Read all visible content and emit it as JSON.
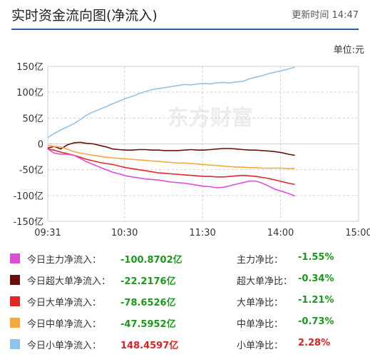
{
  "header": {
    "title": "实时资金流向图(净流入)",
    "update_time": "更新时间 14:47"
  },
  "unit_label": "单位:元",
  "watermark": "东方财富",
  "colors": {
    "main": "#e04cd8",
    "super_large": "#6b0e0e",
    "large": "#e32626",
    "medium": "#f4a93a",
    "small": "#8fc3ea",
    "grid": "#cfcfcf",
    "positive": "#e0201e",
    "negative": "#1a9a1a"
  },
  "chart_data": {
    "type": "line",
    "title": "",
    "xlabel": "",
    "ylabel": "",
    "xlim": [
      "09:31",
      "15:00"
    ],
    "ylim": [
      -150,
      150
    ],
    "x_ticks": [
      "09:31",
      "10:30",
      "11:30",
      "14:00",
      "15:00"
    ],
    "y_ticks": [
      "150亿",
      "100亿",
      "50亿",
      "0",
      "-50亿",
      "-100亿",
      "-150亿"
    ],
    "grid": true,
    "x_step_minutes": 5,
    "x_start": "09:31",
    "series": [
      {
        "key": "small",
        "values": [
          12,
          20,
          27,
          33,
          39,
          47,
          56,
          62,
          67,
          72,
          78,
          83,
          88,
          92,
          97,
          101,
          105,
          107,
          109,
          111,
          113,
          115,
          114,
          116,
          117,
          116,
          118,
          119,
          118,
          120,
          121,
          126,
          129,
          132,
          136,
          139,
          142,
          145,
          148.46
        ]
      },
      {
        "key": "super_large",
        "values": [
          -8,
          -5,
          -10,
          -2,
          2,
          3,
          1,
          0,
          -3,
          -6,
          -10,
          -11,
          -12,
          -12,
          -11,
          -11,
          -12,
          -12,
          -13,
          -13,
          -13,
          -12,
          -11,
          -12,
          -12,
          -11,
          -10,
          -9,
          -9,
          -10,
          -11,
          -12,
          -12,
          -13,
          -14,
          -15,
          -17,
          -20,
          -22.22
        ]
      },
      {
        "key": "medium",
        "values": [
          -3,
          -5,
          -6,
          -10,
          -15,
          -18,
          -20,
          -22,
          -24,
          -26,
          -27,
          -28,
          -29,
          -30,
          -31,
          -32,
          -33,
          -34,
          -35,
          -36,
          -37,
          -37,
          -38,
          -39,
          -40,
          -41,
          -42,
          -43,
          -44,
          -45,
          -45,
          -46,
          -46,
          -47,
          -47,
          -47,
          -47,
          -48,
          -47.6
        ]
      },
      {
        "key": "large",
        "values": [
          -10,
          -12,
          -16,
          -19,
          -22,
          -26,
          -30,
          -33,
          -36,
          -38,
          -40,
          -43,
          -46,
          -48,
          -50,
          -52,
          -54,
          -56,
          -57,
          -58,
          -59,
          -60,
          -61,
          -62,
          -63,
          -63,
          -64,
          -64,
          -63,
          -62,
          -61,
          -62,
          -63,
          -65,
          -67,
          -70,
          -73,
          -76,
          -78.65
        ]
      },
      {
        "key": "main",
        "values": [
          -10,
          -18,
          -20,
          -20,
          -22,
          -28,
          -35,
          -40,
          -45,
          -50,
          -55,
          -58,
          -62,
          -64,
          -66,
          -68,
          -69,
          -70,
          -72,
          -74,
          -75,
          -76,
          -78,
          -80,
          -82,
          -83,
          -85,
          -84,
          -81,
          -78,
          -75,
          -72,
          -72,
          -76,
          -82,
          -88,
          -92,
          -96,
          -100.87
        ]
      }
    ]
  },
  "legend": [
    {
      "key": "main",
      "name": "今日主力净流入：",
      "value": "-100.8702亿",
      "value_sign": "neg",
      "ratio_label": "主力净比：",
      "ratio": "-1.55%",
      "ratio_sign": "neg"
    },
    {
      "key": "super_large",
      "name": "今日超大单净流入：",
      "value": "-22.2176亿",
      "value_sign": "neg",
      "ratio_label": "超大单净比：",
      "ratio": "-0.34%",
      "ratio_sign": "neg"
    },
    {
      "key": "large",
      "name": "今日大单净流入：",
      "value": "-78.6526亿",
      "value_sign": "neg",
      "ratio_label": "大单净比：",
      "ratio": "-1.21%",
      "ratio_sign": "neg"
    },
    {
      "key": "medium",
      "name": "今日中单净流入：",
      "value": "-47.5952亿",
      "value_sign": "neg",
      "ratio_label": "中单净比：",
      "ratio": "-0.73%",
      "ratio_sign": "neg"
    },
    {
      "key": "small",
      "name": "今日小单净流入：",
      "value": "148.4597亿",
      "value_sign": "pos",
      "ratio_label": "小单净比：",
      "ratio": "2.28%",
      "ratio_sign": "pos"
    }
  ]
}
